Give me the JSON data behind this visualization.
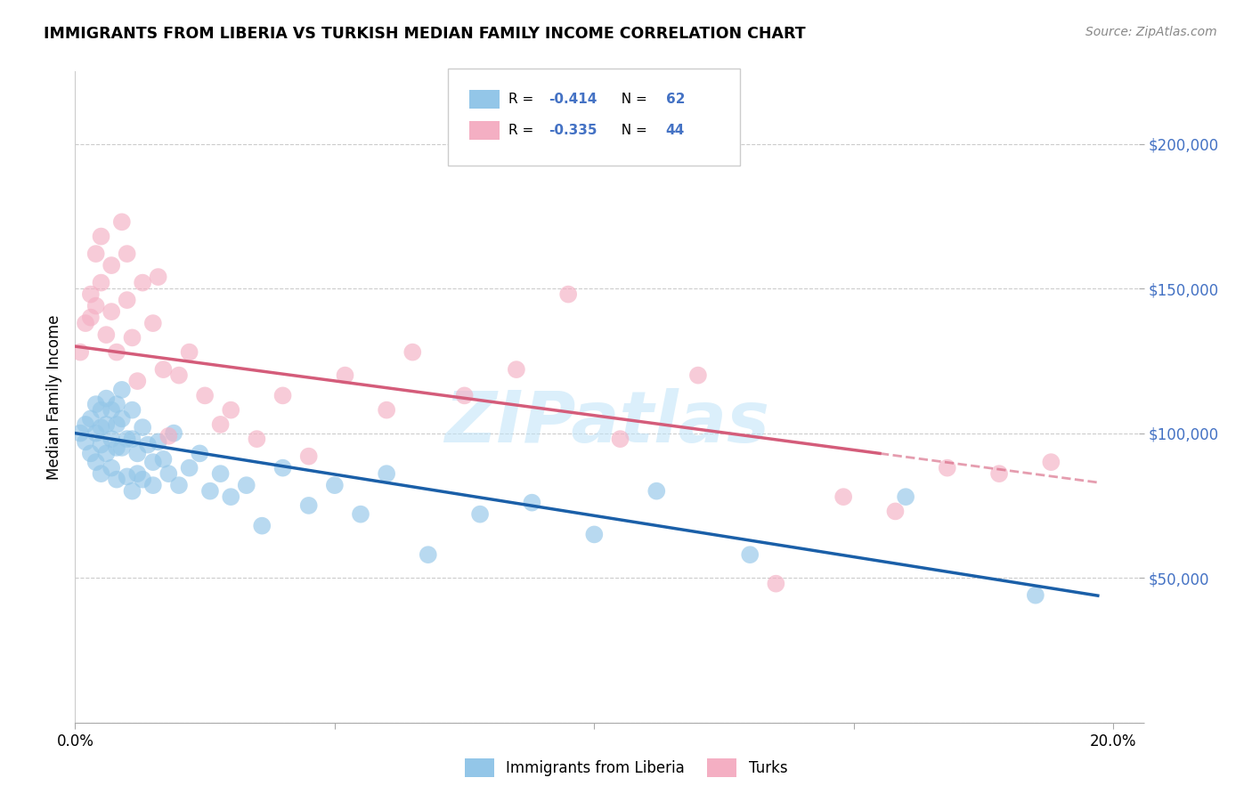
{
  "title": "IMMIGRANTS FROM LIBERIA VS TURKISH MEDIAN FAMILY INCOME CORRELATION CHART",
  "source": "Source: ZipAtlas.com",
  "ylabel": "Median Family Income",
  "xlim": [
    0.0,
    0.205
  ],
  "ylim": [
    0,
    225000
  ],
  "ytick_vals": [
    0,
    50000,
    100000,
    150000,
    200000
  ],
  "ytick_labels": [
    "",
    "$50,000",
    "$100,000",
    "$150,000",
    "$200,000"
  ],
  "xtick_vals": [
    0.0,
    0.05,
    0.1,
    0.15,
    0.2
  ],
  "xtick_labels": [
    "0.0%",
    "",
    "",
    "",
    "20.0%"
  ],
  "legend_label1": "Immigrants from Liberia",
  "legend_label2": "Turks",
  "blue_color": "#93c6e8",
  "pink_color": "#f4afc3",
  "blue_line_color": "#1a5fa8",
  "pink_line_color": "#d45c7a",
  "axis_label_color": "#4472c4",
  "r1": "-0.414",
  "n1": "62",
  "r2": "-0.335",
  "n2": "44",
  "blue_x": [
    0.001,
    0.002,
    0.002,
    0.003,
    0.003,
    0.004,
    0.004,
    0.004,
    0.005,
    0.005,
    0.005,
    0.005,
    0.006,
    0.006,
    0.006,
    0.007,
    0.007,
    0.007,
    0.008,
    0.008,
    0.008,
    0.008,
    0.009,
    0.009,
    0.009,
    0.01,
    0.01,
    0.011,
    0.011,
    0.011,
    0.012,
    0.012,
    0.013,
    0.013,
    0.014,
    0.015,
    0.015,
    0.016,
    0.017,
    0.018,
    0.019,
    0.02,
    0.022,
    0.024,
    0.026,
    0.028,
    0.03,
    0.033,
    0.036,
    0.04,
    0.045,
    0.05,
    0.055,
    0.06,
    0.068,
    0.078,
    0.088,
    0.1,
    0.112,
    0.13,
    0.16,
    0.185
  ],
  "blue_y": [
    100000,
    103000,
    97000,
    105000,
    93000,
    110000,
    100000,
    90000,
    108000,
    102000,
    96000,
    86000,
    112000,
    103000,
    93000,
    108000,
    98000,
    88000,
    110000,
    103000,
    95000,
    84000,
    115000,
    105000,
    95000,
    85000,
    98000,
    108000,
    98000,
    80000,
    93000,
    86000,
    102000,
    84000,
    96000,
    90000,
    82000,
    97000,
    91000,
    86000,
    100000,
    82000,
    88000,
    93000,
    80000,
    86000,
    78000,
    82000,
    68000,
    88000,
    75000,
    82000,
    72000,
    86000,
    58000,
    72000,
    76000,
    65000,
    80000,
    58000,
    78000,
    44000
  ],
  "pink_x": [
    0.001,
    0.002,
    0.003,
    0.003,
    0.004,
    0.004,
    0.005,
    0.005,
    0.006,
    0.007,
    0.007,
    0.008,
    0.009,
    0.01,
    0.01,
    0.011,
    0.012,
    0.013,
    0.015,
    0.016,
    0.017,
    0.018,
    0.02,
    0.022,
    0.025,
    0.028,
    0.03,
    0.035,
    0.04,
    0.045,
    0.052,
    0.06,
    0.065,
    0.075,
    0.085,
    0.095,
    0.105,
    0.12,
    0.135,
    0.148,
    0.158,
    0.168,
    0.178,
    0.188
  ],
  "pink_y": [
    128000,
    138000,
    148000,
    140000,
    162000,
    144000,
    168000,
    152000,
    134000,
    158000,
    142000,
    128000,
    173000,
    146000,
    162000,
    133000,
    118000,
    152000,
    138000,
    154000,
    122000,
    99000,
    120000,
    128000,
    113000,
    103000,
    108000,
    98000,
    113000,
    92000,
    120000,
    108000,
    128000,
    113000,
    122000,
    148000,
    98000,
    120000,
    48000,
    78000,
    73000,
    88000,
    86000,
    90000
  ]
}
